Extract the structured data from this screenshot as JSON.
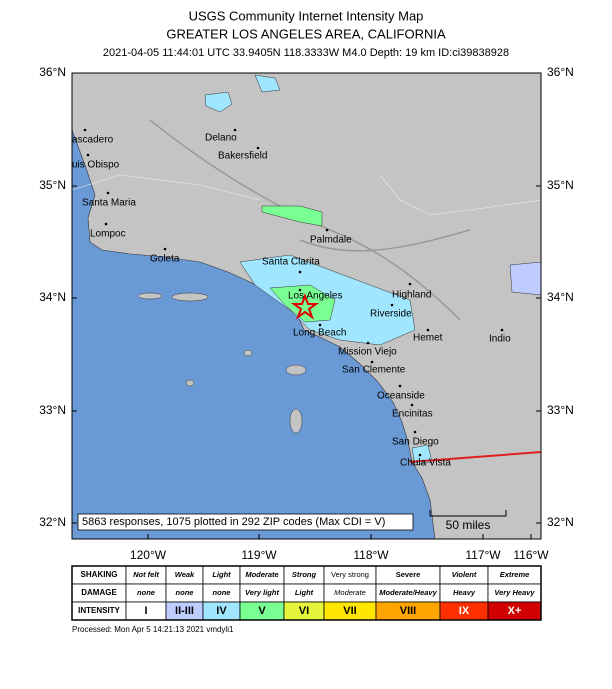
{
  "header": {
    "title": "USGS Community Internet Intensity Map",
    "region": "GREATER LOS ANGELES AREA, CALIFORNIA",
    "event": "2021-04-05 11:44:01 UTC 33.9405N 118.3333W M4.0 Depth: 19 km ID:ci39838928"
  },
  "map": {
    "lat_labels": [
      "36°N",
      "35°N",
      "34°N",
      "33°N",
      "32°N"
    ],
    "lon_labels": [
      "120°W",
      "119°W",
      "118°W",
      "117°W",
      "116°W"
    ],
    "cities": [
      "Delano",
      "Bakersfield",
      "ascadero",
      "uis Obispo",
      "Santa Maria",
      "Lompoc",
      "Goleta",
      "Palmdale",
      "Santa Clarita",
      "Los Angeles",
      "Highland",
      "Riverside",
      "Long Beach",
      "Hemet",
      "Indio",
      "Mission Viejo",
      "San Clemente",
      "Oceanside",
      "Encinitas",
      "San Diego",
      "Chula Vista"
    ],
    "summary": "5863 responses, 1075 plotted in 292 ZIP codes (Max CDI = V)",
    "scale": "50 miles"
  },
  "legend": {
    "rows": [
      {
        "label": "SHAKING",
        "cells": [
          "Not felt",
          "Weak",
          "Light",
          "Moderate",
          "Strong",
          "Very strong",
          "Severe",
          "Violent",
          "Extreme"
        ]
      },
      {
        "label": "DAMAGE",
        "cells": [
          "none",
          "none",
          "none",
          "Very light",
          "Light",
          "Moderate",
          "Moderate/Heavy",
          "Heavy",
          "Very Heavy"
        ]
      },
      {
        "label": "INTENSITY",
        "cells": [
          "I",
          "II-III",
          "IV",
          "V",
          "VI",
          "VII",
          "VIII",
          "IX",
          "X+"
        ]
      }
    ],
    "colors": [
      "#ffffff",
      "#bfccff",
      "#a0e6ff",
      "#7aff93",
      "#e6f53c",
      "#ffe600",
      "#ffa500",
      "#ff3000",
      "#d00000"
    ]
  },
  "footer": "Processed: Mon Apr  5 14:21:13 2021 vmdyli1"
}
